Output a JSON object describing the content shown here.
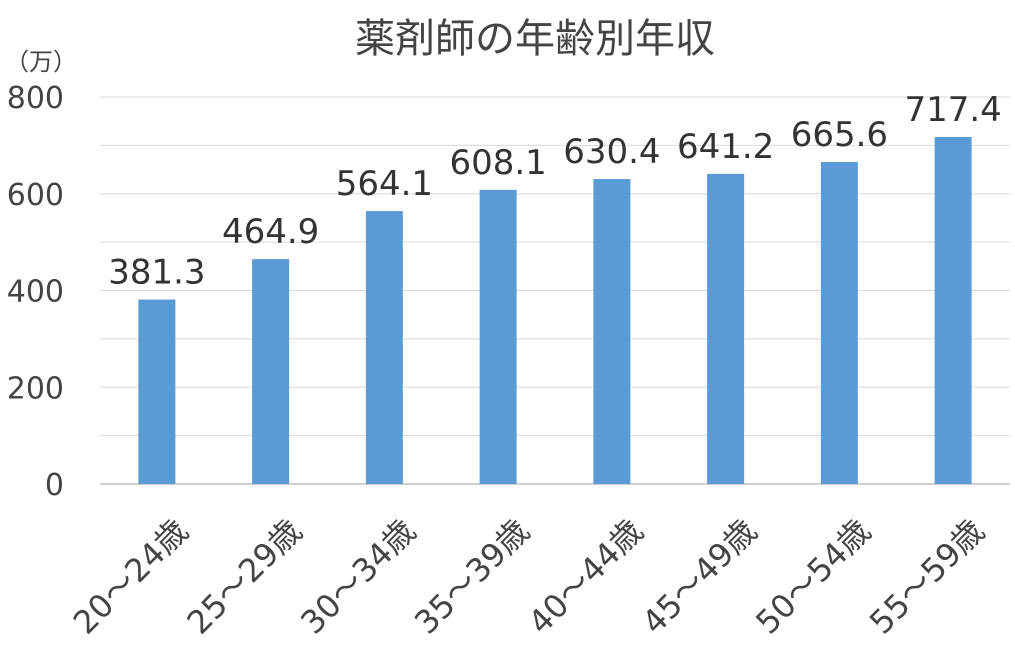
{
  "chart_data": {
    "type": "bar",
    "title": "薬剤師の年齢別年収",
    "unit_label": "（万）",
    "ylim": [
      0,
      800
    ],
    "yticks": [
      0,
      200,
      400,
      600,
      800
    ],
    "grid": true,
    "categories": [
      "20～24歳",
      "25～29歳",
      "30～34歳",
      "35～39歳",
      "40～44歳",
      "45～49歳",
      "50～54歳",
      "55～59歳"
    ],
    "values": [
      381.3,
      464.9,
      564.1,
      608.1,
      630.4,
      641.2,
      665.6,
      717.4
    ],
    "data_labels": [
      "381.3",
      "464.9",
      "564.1",
      "608.1",
      "630.4",
      "641.2",
      "665.6",
      "717.4"
    ],
    "bar_color": "#5b9bd5"
  }
}
